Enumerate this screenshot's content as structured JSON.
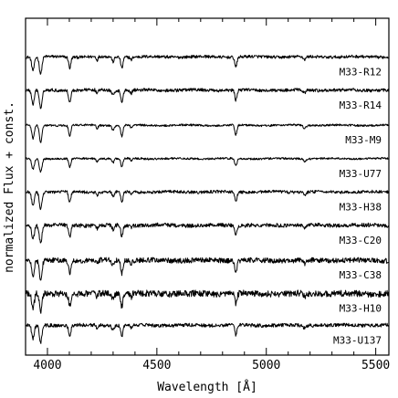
{
  "chart_data": {
    "type": "line",
    "title": "",
    "xlabel": "Wavelength [Å]",
    "ylabel": "normalized Flux + const.",
    "xlim": [
      3900,
      5560
    ],
    "ylim": [
      0,
      9.6
    ],
    "x_major_ticks": [
      4000,
      4500,
      5000,
      5500
    ],
    "x_tick_labels": [
      "4000",
      "4500",
      "5000",
      "5500"
    ],
    "x_minor_step": 100,
    "grid": false,
    "legend": "none",
    "series_label_position": "right end of each spectrum",
    "absorption_features": [
      {
        "wavelength": 3934,
        "depth": 0.55,
        "width": 6
      },
      {
        "wavelength": 3969,
        "depth": 0.7,
        "width": 6
      },
      {
        "wavelength": 4102,
        "depth": 0.45,
        "width": 5
      },
      {
        "wavelength": 4227,
        "depth": 0.15,
        "width": 4
      },
      {
        "wavelength": 4300,
        "depth": 0.2,
        "width": 5
      },
      {
        "wavelength": 4340,
        "depth": 0.45,
        "width": 5
      },
      {
        "wavelength": 4383,
        "depth": 0.12,
        "width": 4
      },
      {
        "wavelength": 4861,
        "depth": 0.4,
        "width": 5
      },
      {
        "wavelength": 5175,
        "depth": 0.12,
        "width": 6
      }
    ],
    "series": [
      {
        "name": "M33-R12",
        "offset": 8.5,
        "noise": 0.06,
        "scale": 0.7
      },
      {
        "name": "M33-R14",
        "offset": 7.55,
        "noise": 0.06,
        "scale": 0.75
      },
      {
        "name": "M33-M9",
        "offset": 6.55,
        "noise": 0.04,
        "scale": 0.7
      },
      {
        "name": "M33-U77",
        "offset": 5.6,
        "noise": 0.05,
        "scale": 0.55
      },
      {
        "name": "M33-H38",
        "offset": 4.65,
        "noise": 0.06,
        "scale": 0.7
      },
      {
        "name": "M33-C20",
        "offset": 3.7,
        "noise": 0.08,
        "scale": 0.7
      },
      {
        "name": "M33-C38",
        "offset": 2.7,
        "noise": 0.09,
        "scale": 0.8
      },
      {
        "name": "M33-H10",
        "offset": 1.75,
        "noise": 0.12,
        "scale": 0.75
      },
      {
        "name": "M33-U137",
        "offset": 0.85,
        "noise": 0.07,
        "scale": 0.7
      }
    ]
  }
}
